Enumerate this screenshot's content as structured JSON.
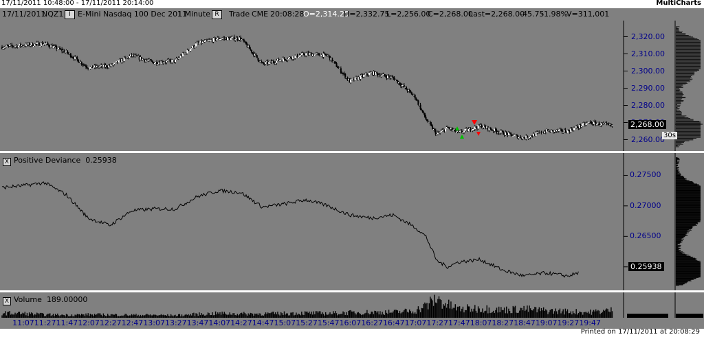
{
  "window": {
    "range_title": "17/11/2011 10:48:00 - 17/11/2011 20:14:00",
    "app_name": "MultiCharts"
  },
  "toolbar": {
    "date": "17/11/2011",
    "symbol": "NQZ1",
    "info_button": "I",
    "description": "E-Mini Nasdaq 100 Dec 2011",
    "interval": "1 Minute",
    "range_button": "R",
    "data_type": "Trade",
    "exchange": "CME",
    "time": "20:08:28",
    "open": "O=2,314.25",
    "high": "H=2,332.75",
    "low": "L=2,256.00",
    "close": "C=2,268.00",
    "last": "Last=2,268.00",
    "change": "-45.75",
    "change_pct": "-1.98%",
    "volume": "V=311,001"
  },
  "price_pane": {
    "axis_labels": [
      "2,320.00",
      "2,310.00",
      "2,300.00",
      "2,290.00",
      "2,280.00",
      "2,270.00",
      "2,260.00"
    ],
    "last_price_tag": "2,268.00",
    "resolution_tag": "30s",
    "colors": {
      "background": "#808080",
      "up_bar": "#ffffff",
      "down_bar": "#000000",
      "buy_marker": "#00c000",
      "sell_marker": "#ff0000"
    }
  },
  "deviance_pane": {
    "close_icon": "X",
    "title": "Positive Deviance",
    "value": "0.25938",
    "axis_labels": [
      "0.27500",
      "0.27000",
      "0.26500",
      "0.26000"
    ],
    "last_value_tag": "0.25938"
  },
  "volume_pane": {
    "close_icon": "X",
    "title": "Volume",
    "value": "189.00000"
  },
  "time_axis": {
    "labels": [
      "11:07",
      "11:27",
      "11:47",
      "12:07",
      "12:27",
      "12:47",
      "13:07",
      "13:27",
      "13:47",
      "14:07",
      "14:27",
      "14:47",
      "15:07",
      "15:27",
      "15:47",
      "16:07",
      "16:27",
      "16:47",
      "17:07",
      "17:27",
      "17:47",
      "18:07",
      "18:27",
      "18:47",
      "19:07",
      "19:27",
      "19:47"
    ]
  },
  "status": {
    "printed": "Printed on 17/11/2011 at 20:08:29"
  },
  "chart_data": [
    {
      "type": "candlestick",
      "title": "",
      "ylim": [
        2255,
        2327
      ],
      "x_range": [
        "10:48",
        "20:14"
      ],
      "grid": false,
      "series": [
        {
          "name": "",
          "x": [
            "10:48",
            "11:07",
            "11:27",
            "11:47",
            "12:07",
            "12:27",
            "12:47",
            "13:07",
            "13:27",
            "13:47",
            "14:07",
            "14:27",
            "14:47",
            "15:07",
            "15:27",
            "15:47",
            "16:07",
            "16:27",
            "16:47",
            "17:07",
            "17:17",
            "17:27",
            "17:37",
            "17:47",
            "18:07",
            "18:27",
            "18:47",
            "19:07",
            "19:27",
            "19:47",
            "20:08"
          ],
          "values": [
            2314,
            2315,
            2316,
            2311,
            2302,
            2303,
            2309,
            2305,
            2306,
            2316,
            2319,
            2319,
            2304,
            2307,
            2310,
            2309,
            2294,
            2299,
            2296,
            2285,
            2272,
            2263,
            2267,
            2264,
            2268,
            2264,
            2261,
            2265,
            2265,
            2270,
            2268
          ]
        }
      ]
    },
    {
      "type": "line",
      "title": "",
      "ylim": [
        0.2566,
        0.2782
      ],
      "x_range": [
        "10:48",
        "20:14"
      ],
      "grid": false,
      "series": [
        {
          "name": "",
          "x": [
            "10:48",
            "11:07",
            "11:27",
            "11:47",
            "12:07",
            "12:27",
            "12:47",
            "13:07",
            "13:27",
            "13:47",
            "14:07",
            "14:27",
            "14:47",
            "15:07",
            "15:27",
            "15:47",
            "16:07",
            "16:27",
            "16:47",
            "17:07",
            "17:17",
            "17:27",
            "17:37",
            "17:47",
            "18:07",
            "18:27",
            "18:47",
            "19:07",
            "19:27",
            "19:37"
          ],
          "values": [
            0.273,
            0.2733,
            0.2738,
            0.2718,
            0.268,
            0.2668,
            0.2692,
            0.2695,
            0.2695,
            0.2715,
            0.2725,
            0.2722,
            0.2698,
            0.2703,
            0.271,
            0.27,
            0.2685,
            0.268,
            0.2685,
            0.2665,
            0.265,
            0.261,
            0.26,
            0.2608,
            0.2612,
            0.2595,
            0.2585,
            0.259,
            0.2585,
            0.259
          ]
        }
      ]
    },
    {
      "type": "bar",
      "title": "",
      "x_range": [
        "10:48",
        "20:14"
      ],
      "grid": false,
      "series": [
        {
          "name": "",
          "x": [
            "10:48",
            "11:07",
            "11:27",
            "11:47",
            "12:07",
            "12:27",
            "12:47",
            "13:07",
            "13:27",
            "13:47",
            "14:07",
            "14:27",
            "14:47",
            "15:07",
            "15:27",
            "15:47",
            "16:07",
            "16:27",
            "16:47",
            "17:07",
            "17:17",
            "17:27",
            "17:37",
            "17:47",
            "18:07",
            "18:27",
            "18:47",
            "19:07",
            "19:27",
            "19:47",
            "20:08"
          ],
          "values": [
            60,
            55,
            40,
            35,
            40,
            38,
            35,
            35,
            30,
            45,
            55,
            50,
            50,
            55,
            60,
            55,
            65,
            70,
            70,
            90,
            150,
            240,
            160,
            110,
            120,
            100,
            110,
            90,
            80,
            70,
            95
          ]
        }
      ]
    }
  ]
}
